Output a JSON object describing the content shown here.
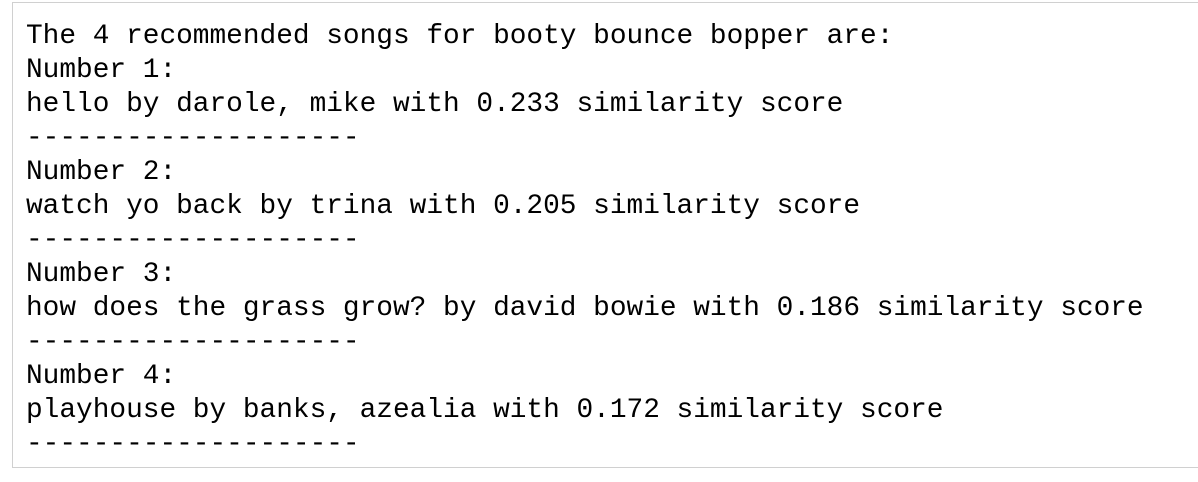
{
  "header": "The 4 recommended songs for booty bounce bopper are:",
  "items": [
    {
      "label": "Number 1:",
      "text": "hello by darole, mike with 0.233 similarity score",
      "separator": "--------------------"
    },
    {
      "label": "Number 2:",
      "text": "watch yo back by trina with 0.205 similarity score",
      "separator": "--------------------"
    },
    {
      "label": "Number 3:",
      "text": "how does the grass grow? by david bowie with 0.186 similarity score",
      "separator": "--------------------"
    },
    {
      "label": "Number 4:",
      "text": "playhouse by banks, azealia with 0.172 similarity score",
      "separator": "--------------------"
    }
  ]
}
